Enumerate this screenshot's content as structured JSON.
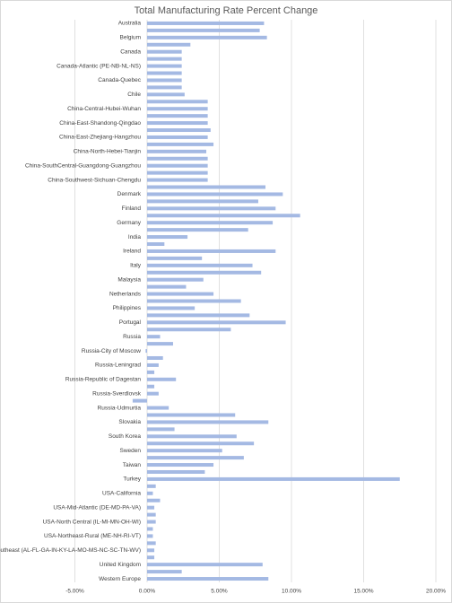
{
  "chart_data": {
    "type": "hbar",
    "title": "Total Manufacturing Rate Percent Change",
    "categories": [
      "Australia",
      null,
      "Belgium",
      null,
      "Canada",
      null,
      "Canada-Atlantic (PE-NB-NL-NS)",
      null,
      "Canada-Quebec",
      null,
      "Chile",
      null,
      "China-Central-Hubei-Wuhan",
      null,
      "China-East-Shandong-Qingdao",
      null,
      "China-East-Zhejiang-Hangzhou",
      null,
      "China-North-Hebei-Tianjin",
      null,
      "China-SouthCentral-Guangdong-Guangzhou",
      null,
      "China-Southwest-Sichuan-Chengdu",
      null,
      "Denmark",
      null,
      "Finland",
      null,
      "Germany",
      null,
      "India",
      null,
      "Ireland",
      null,
      "Italy",
      null,
      "Malaysia",
      null,
      "Netherlands",
      null,
      "Philippines",
      null,
      "Portugal",
      null,
      "Russia",
      null,
      "Russia-City of Moscow",
      null,
      "Russia-Leningrad",
      null,
      "Russia-Republic of Dagestan",
      null,
      "Russia-Sverdlovsk",
      null,
      "Russia-Udmurtia",
      null,
      "Slovakia",
      null,
      "South Korea",
      null,
      "Sweden",
      null,
      "Taiwan",
      null,
      "Turkey",
      null,
      "USA-California",
      null,
      "USA-Mid-Atlantic (DE-MD-PA-VA)",
      null,
      "USA-North Central (IL-MI-MN-OH-WI)",
      null,
      "USA-Northeast-Rural (ME-NH-RI-VT)",
      null,
      "USA-Southeast (AL-FL-GA-IN-KY-LA-MO-MS-NC-SC-TN-WV)",
      null,
      "United Kingdom",
      null,
      "Western Europe"
    ],
    "values": [
      8.1,
      7.8,
      8.3,
      3.0,
      2.4,
      2.4,
      2.4,
      2.4,
      2.4,
      2.4,
      2.6,
      4.2,
      4.2,
      4.2,
      4.2,
      4.4,
      4.2,
      4.6,
      4.1,
      4.2,
      4.2,
      4.2,
      4.2,
      8.2,
      9.4,
      7.7,
      8.9,
      10.6,
      8.7,
      7.0,
      2.8,
      1.2,
      8.9,
      3.8,
      7.3,
      7.9,
      3.9,
      2.7,
      4.6,
      6.5,
      3.3,
      7.1,
      9.6,
      5.8,
      0.9,
      1.8,
      -0.1,
      1.1,
      0.8,
      0.5,
      2.0,
      0.5,
      0.8,
      -1.0,
      1.5,
      6.1,
      8.4,
      1.9,
      6.2,
      7.4,
      5.2,
      6.7,
      4.6,
      4.0,
      17.5,
      0.6,
      0.4,
      0.9,
      0.5,
      0.6,
      0.6,
      0.4,
      0.4,
      0.6,
      0.5,
      0.5,
      8.0,
      2.4,
      8.4
    ],
    "color": "#a4b9e3",
    "xlim": [
      -5,
      20
    ],
    "xticks": [
      {
        "value": -5,
        "label": "-5.00%"
      },
      {
        "value": 0,
        "label": "0.00%"
      },
      {
        "value": 5,
        "label": "5.00%"
      },
      {
        "value": 10,
        "label": "10.00%"
      },
      {
        "value": 15,
        "label": "15.00%"
      },
      {
        "value": 20,
        "label": "20.00%"
      }
    ],
    "grid": true
  }
}
